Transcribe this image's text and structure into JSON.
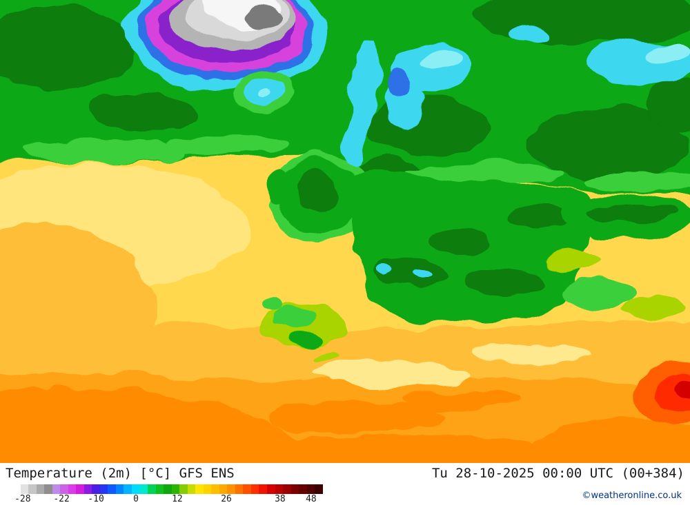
{
  "footer": {
    "title": "Temperature (2m) [°C] GFS ENS",
    "timestamp": "Tu 28-10-2025 00:00 UTC (00+384)",
    "copyright": "©weatheronline.co.uk",
    "copyright_color": "#003087",
    "legend": {
      "unit": "°C",
      "segments": [
        "#ffffff",
        "#e2e2e2",
        "#c6c6c6",
        "#aaaaaa",
        "#8e8e8e",
        "#be8ce8",
        "#cc62e8",
        "#dc3ce8",
        "#d21edc",
        "#8c1ae0",
        "#4b1ee6",
        "#2337f5",
        "#0f5aff",
        "#0087ff",
        "#00b4ff",
        "#00dcff",
        "#00e9c8",
        "#00d25a",
        "#0fc01e",
        "#0fa80f",
        "#2cb400",
        "#82cc00",
        "#c8dc00",
        "#ffe400",
        "#ffd200",
        "#ffbe00",
        "#ffa800",
        "#ff9000",
        "#ff7000",
        "#ff5000",
        "#ff3000",
        "#f01400",
        "#d70000",
        "#b90000",
        "#9b0000",
        "#7d0000",
        "#640000",
        "#500000",
        "#3c0000"
      ],
      "ticks": [
        {
          "label": "-28",
          "pos": 3.3
        },
        {
          "label": "-22",
          "pos": 15.8
        },
        {
          "label": "-10",
          "pos": 26.9
        },
        {
          "label": "0",
          "pos": 39.8
        },
        {
          "label": "12",
          "pos": 53.1
        },
        {
          "label": "26",
          "pos": 68.9
        },
        {
          "label": "38",
          "pos": 86.2
        },
        {
          "label": "48",
          "pos": 96.2
        }
      ]
    }
  },
  "map": {
    "palette": {
      "yellowBase": "#ffd84e",
      "yellowPale": "#ffe98e",
      "yellowGreen": "#aad400",
      "greenLight": "#3bcf3b",
      "greenMid": "#0ca816",
      "greenDark": "#077d08",
      "cyan": "#3cd7f0",
      "cyanLight": "#8ceef5",
      "blue": "#2f6fe6",
      "magenta": "#d843dc",
      "purple": "#8a22cc",
      "gray": "#b4b4b4",
      "grayLight": "#d9d9d9",
      "grayDark": "#7a7a7a",
      "white": "#f6f6f6",
      "orangeLight": "#ffbe37",
      "orange": "#ffa317",
      "orangeDeep": "#ff8c05",
      "orangeRed": "#ff5f00",
      "red": "#ff2a00",
      "redDark": "#d40000"
    }
  }
}
